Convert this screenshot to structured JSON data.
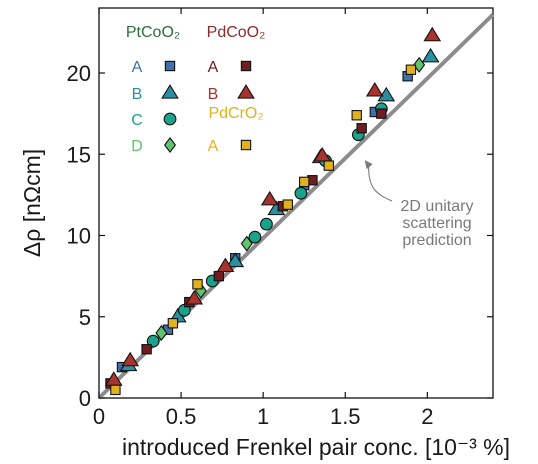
{
  "chart_data": {
    "type": "scatter",
    "title": "",
    "xlabel": "introduced Frenkel pair conc. [10⁻³ %]",
    "ylabel": "Δρ [nΩcm]",
    "xlim": [
      0,
      2.4
    ],
    "ylim": [
      0,
      24
    ],
    "xticks": [
      "0",
      "0.5",
      "1",
      "1.5",
      "2"
    ],
    "yticks": [
      "0",
      "5",
      "10",
      "15",
      "20"
    ],
    "grid": false,
    "legend_position": "top-left",
    "legend_groups": [
      {
        "name": "PtCoO₂",
        "color": "#2e6b3a"
      },
      {
        "name": "PdCoO₂",
        "color": "#8b2a2a"
      },
      {
        "name": "PdCrO₂",
        "color": "#e0b21e"
      }
    ],
    "series": [
      {
        "name": "A",
        "group": "PtCoO₂",
        "marker": "square",
        "color": "#3f70a8",
        "points": [
          [
            0.14,
            1.9
          ],
          [
            0.42,
            4.2
          ],
          [
            0.83,
            8.6
          ],
          [
            1.25,
            13.1
          ],
          [
            1.68,
            17.6
          ],
          [
            1.88,
            19.8
          ]
        ]
      },
      {
        "name": "B",
        "group": "PtCoO₂",
        "marker": "triangle",
        "color": "#2c8fa0",
        "points": [
          [
            0.18,
            2.0
          ],
          [
            0.48,
            5.0
          ],
          [
            0.83,
            8.4
          ],
          [
            1.08,
            11.6
          ],
          [
            1.35,
            14.8
          ],
          [
            1.75,
            18.6
          ],
          [
            2.02,
            21.0
          ]
        ]
      },
      {
        "name": "C",
        "group": "PtCoO₂",
        "marker": "circle",
        "color": "#1aa38a",
        "points": [
          [
            0.33,
            3.5
          ],
          [
            0.52,
            5.4
          ],
          [
            0.69,
            7.2
          ],
          [
            0.95,
            9.9
          ],
          [
            1.02,
            10.7
          ],
          [
            1.23,
            12.6
          ],
          [
            1.38,
            14.6
          ],
          [
            1.58,
            16.2
          ],
          [
            1.72,
            17.8
          ]
        ]
      },
      {
        "name": "D",
        "group": "PtCoO₂",
        "marker": "diamond",
        "color": "#5fc46e",
        "points": [
          [
            0.38,
            4.0
          ],
          [
            0.62,
            6.6
          ],
          [
            0.9,
            9.5
          ],
          [
            1.95,
            20.5
          ]
        ]
      },
      {
        "name": "A",
        "group": "PdCoO₂",
        "marker": "square",
        "color": "#6e1e22",
        "points": [
          [
            0.07,
            0.9
          ],
          [
            0.29,
            3.0
          ],
          [
            0.55,
            5.9
          ],
          [
            0.73,
            7.5
          ],
          [
            1.12,
            11.8
          ],
          [
            1.3,
            13.4
          ],
          [
            1.6,
            16.6
          ],
          [
            1.72,
            17.5
          ]
        ]
      },
      {
        "name": "B",
        "group": "PdCoO₂",
        "marker": "triangle",
        "color": "#a8322d",
        "points": [
          [
            0.09,
            1.1
          ],
          [
            0.19,
            2.3
          ],
          [
            0.58,
            6.1
          ],
          [
            0.77,
            8.1
          ],
          [
            1.04,
            12.2
          ],
          [
            1.36,
            14.9
          ],
          [
            1.68,
            18.9
          ],
          [
            2.03,
            22.3
          ]
        ]
      },
      {
        "name": "A",
        "group": "PdCrO₂",
        "marker": "square",
        "color": "#e0b21e",
        "points": [
          [
            0.1,
            0.5
          ],
          [
            0.45,
            4.6
          ],
          [
            0.6,
            7.0
          ],
          [
            1.15,
            11.9
          ],
          [
            1.25,
            13.3
          ],
          [
            1.4,
            14.3
          ],
          [
            1.57,
            17.4
          ],
          [
            1.9,
            20.2
          ]
        ]
      }
    ],
    "reference_line": {
      "label": "2D unitary scattering prediction",
      "x": [
        0,
        2.4
      ],
      "y": [
        0,
        23.6
      ],
      "color": "#8c8c8c"
    },
    "annotation": {
      "lines": [
        "2D unitary",
        "scattering",
        "prediction"
      ],
      "arrow_target": [
        1.6,
        14.7
      ]
    }
  }
}
